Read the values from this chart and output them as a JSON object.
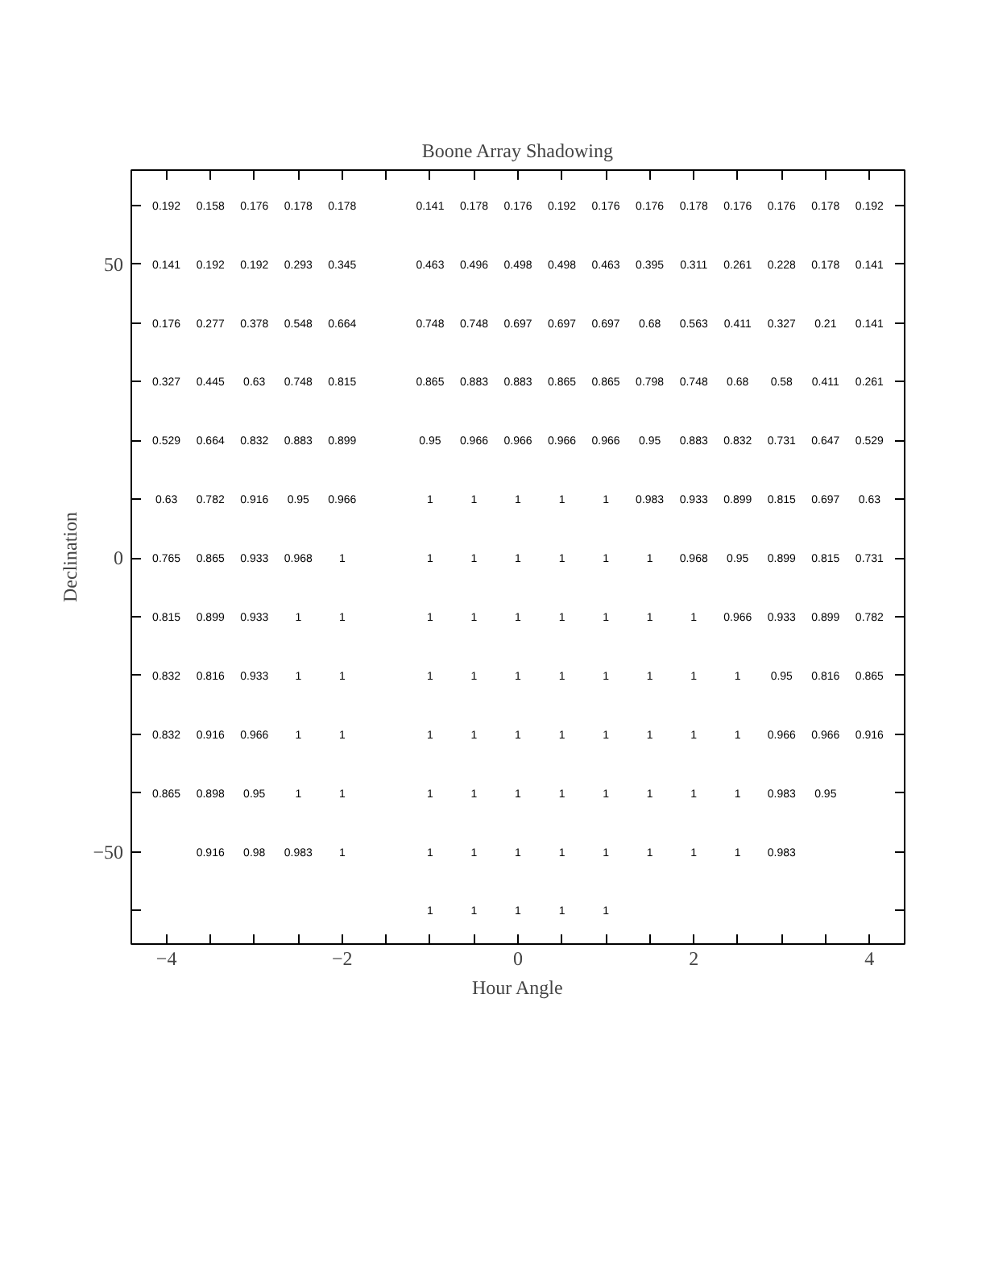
{
  "chart_data": {
    "type": "heatmap",
    "title": "Boone Array Shadowing",
    "xlabel": "Hour Angle",
    "ylabel": "Declination",
    "data_labels": true,
    "categories": [
      "−4",
      null,
      null,
      null,
      "−2",
      null,
      null,
      null,
      "0",
      null,
      null,
      null,
      "2",
      null,
      null,
      null,
      "4"
    ],
    "y_categories": [
      null,
      "50",
      null,
      null,
      null,
      null,
      "0",
      null,
      null,
      null,
      null,
      "−50",
      null
    ],
    "cells": [
      [
        0.192,
        0.158,
        0.176,
        0.178,
        0.178,
        null,
        0.141,
        0.178,
        0.176,
        0.192,
        0.176,
        0.176,
        0.178,
        0.176,
        0.176,
        0.178,
        0.192
      ],
      [
        0.141,
        0.192,
        0.192,
        0.293,
        0.345,
        null,
        0.463,
        0.496,
        0.498,
        0.498,
        0.463,
        0.395,
        0.311,
        0.261,
        0.228,
        0.178,
        0.141
      ],
      [
        0.176,
        0.277,
        0.378,
        0.548,
        0.664,
        null,
        0.748,
        0.748,
        0.697,
        0.697,
        0.697,
        0.68,
        0.563,
        0.411,
        0.327,
        0.21,
        0.141
      ],
      [
        0.327,
        0.445,
        0.63,
        0.748,
        0.815,
        null,
        0.865,
        0.883,
        0.883,
        0.865,
        0.865,
        0.798,
        0.748,
        0.68,
        0.58,
        0.411,
        0.261
      ],
      [
        0.529,
        0.664,
        0.832,
        0.883,
        0.899,
        null,
        0.95,
        0.966,
        0.966,
        0.966,
        0.966,
        0.95,
        0.883,
        0.832,
        0.731,
        0.647,
        0.529
      ],
      [
        0.63,
        0.782,
        0.916,
        0.95,
        0.966,
        null,
        1,
        1,
        1,
        1,
        1,
        0.983,
        0.933,
        0.899,
        0.815,
        0.697,
        0.63
      ],
      [
        0.765,
        0.865,
        0.933,
        0.968,
        1,
        null,
        1,
        1,
        1,
        1,
        1,
        1,
        0.968,
        0.95,
        0.899,
        0.815,
        0.731
      ],
      [
        0.815,
        0.899,
        0.933,
        1,
        1,
        null,
        1,
        1,
        1,
        1,
        1,
        1,
        1,
        0.966,
        0.933,
        0.899,
        0.782
      ],
      [
        0.832,
        0.816,
        0.933,
        1,
        1,
        null,
        1,
        1,
        1,
        1,
        1,
        1,
        1,
        1,
        0.95,
        0.816,
        0.865
      ],
      [
        0.832,
        0.916,
        0.966,
        1,
        1,
        null,
        1,
        1,
        1,
        1,
        1,
        1,
        1,
        1,
        0.966,
        0.966,
        0.916
      ],
      [
        0.865,
        0.898,
        0.95,
        1,
        1,
        null,
        1,
        1,
        1,
        1,
        1,
        1,
        1,
        1,
        0.983,
        0.95,
        null
      ],
      [
        null,
        0.916,
        0.98,
        0.983,
        1,
        null,
        1,
        1,
        1,
        1,
        1,
        1,
        1,
        1,
        0.983,
        null,
        null
      ],
      [
        null,
        null,
        null,
        null,
        null,
        null,
        1,
        1,
        1,
        1,
        1,
        null,
        null,
        null,
        null,
        null,
        null
      ]
    ]
  }
}
